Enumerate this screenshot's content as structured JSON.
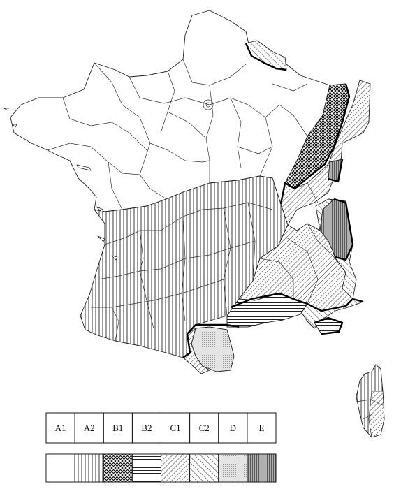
{
  "map": {
    "regions": [
      {
        "id": "north",
        "zone": "A1"
      },
      {
        "id": "south-west",
        "zone": "A2"
      },
      {
        "id": "alsace-jura",
        "zone": "B1"
      },
      {
        "id": "provence-coast",
        "zone": "B2"
      },
      {
        "id": "alps-foreland",
        "zone": "C1"
      },
      {
        "id": "alps-south",
        "zone": "C2"
      },
      {
        "id": "roussillon",
        "zone": "D"
      },
      {
        "id": "savoie",
        "zone": "E"
      },
      {
        "id": "corsica",
        "zone": "A2"
      }
    ]
  },
  "legend": {
    "items": [
      {
        "code": "A1",
        "pattern": "none"
      },
      {
        "code": "A2",
        "pattern": "vertical-lines"
      },
      {
        "code": "B1",
        "pattern": "crosshatch"
      },
      {
        "code": "B2",
        "pattern": "horizontal-lines"
      },
      {
        "code": "C1",
        "pattern": "diagonal-back"
      },
      {
        "code": "C2",
        "pattern": "diagonal-forward"
      },
      {
        "code": "D",
        "pattern": "dots"
      },
      {
        "code": "E",
        "pattern": "dense-vertical-grey"
      }
    ]
  }
}
